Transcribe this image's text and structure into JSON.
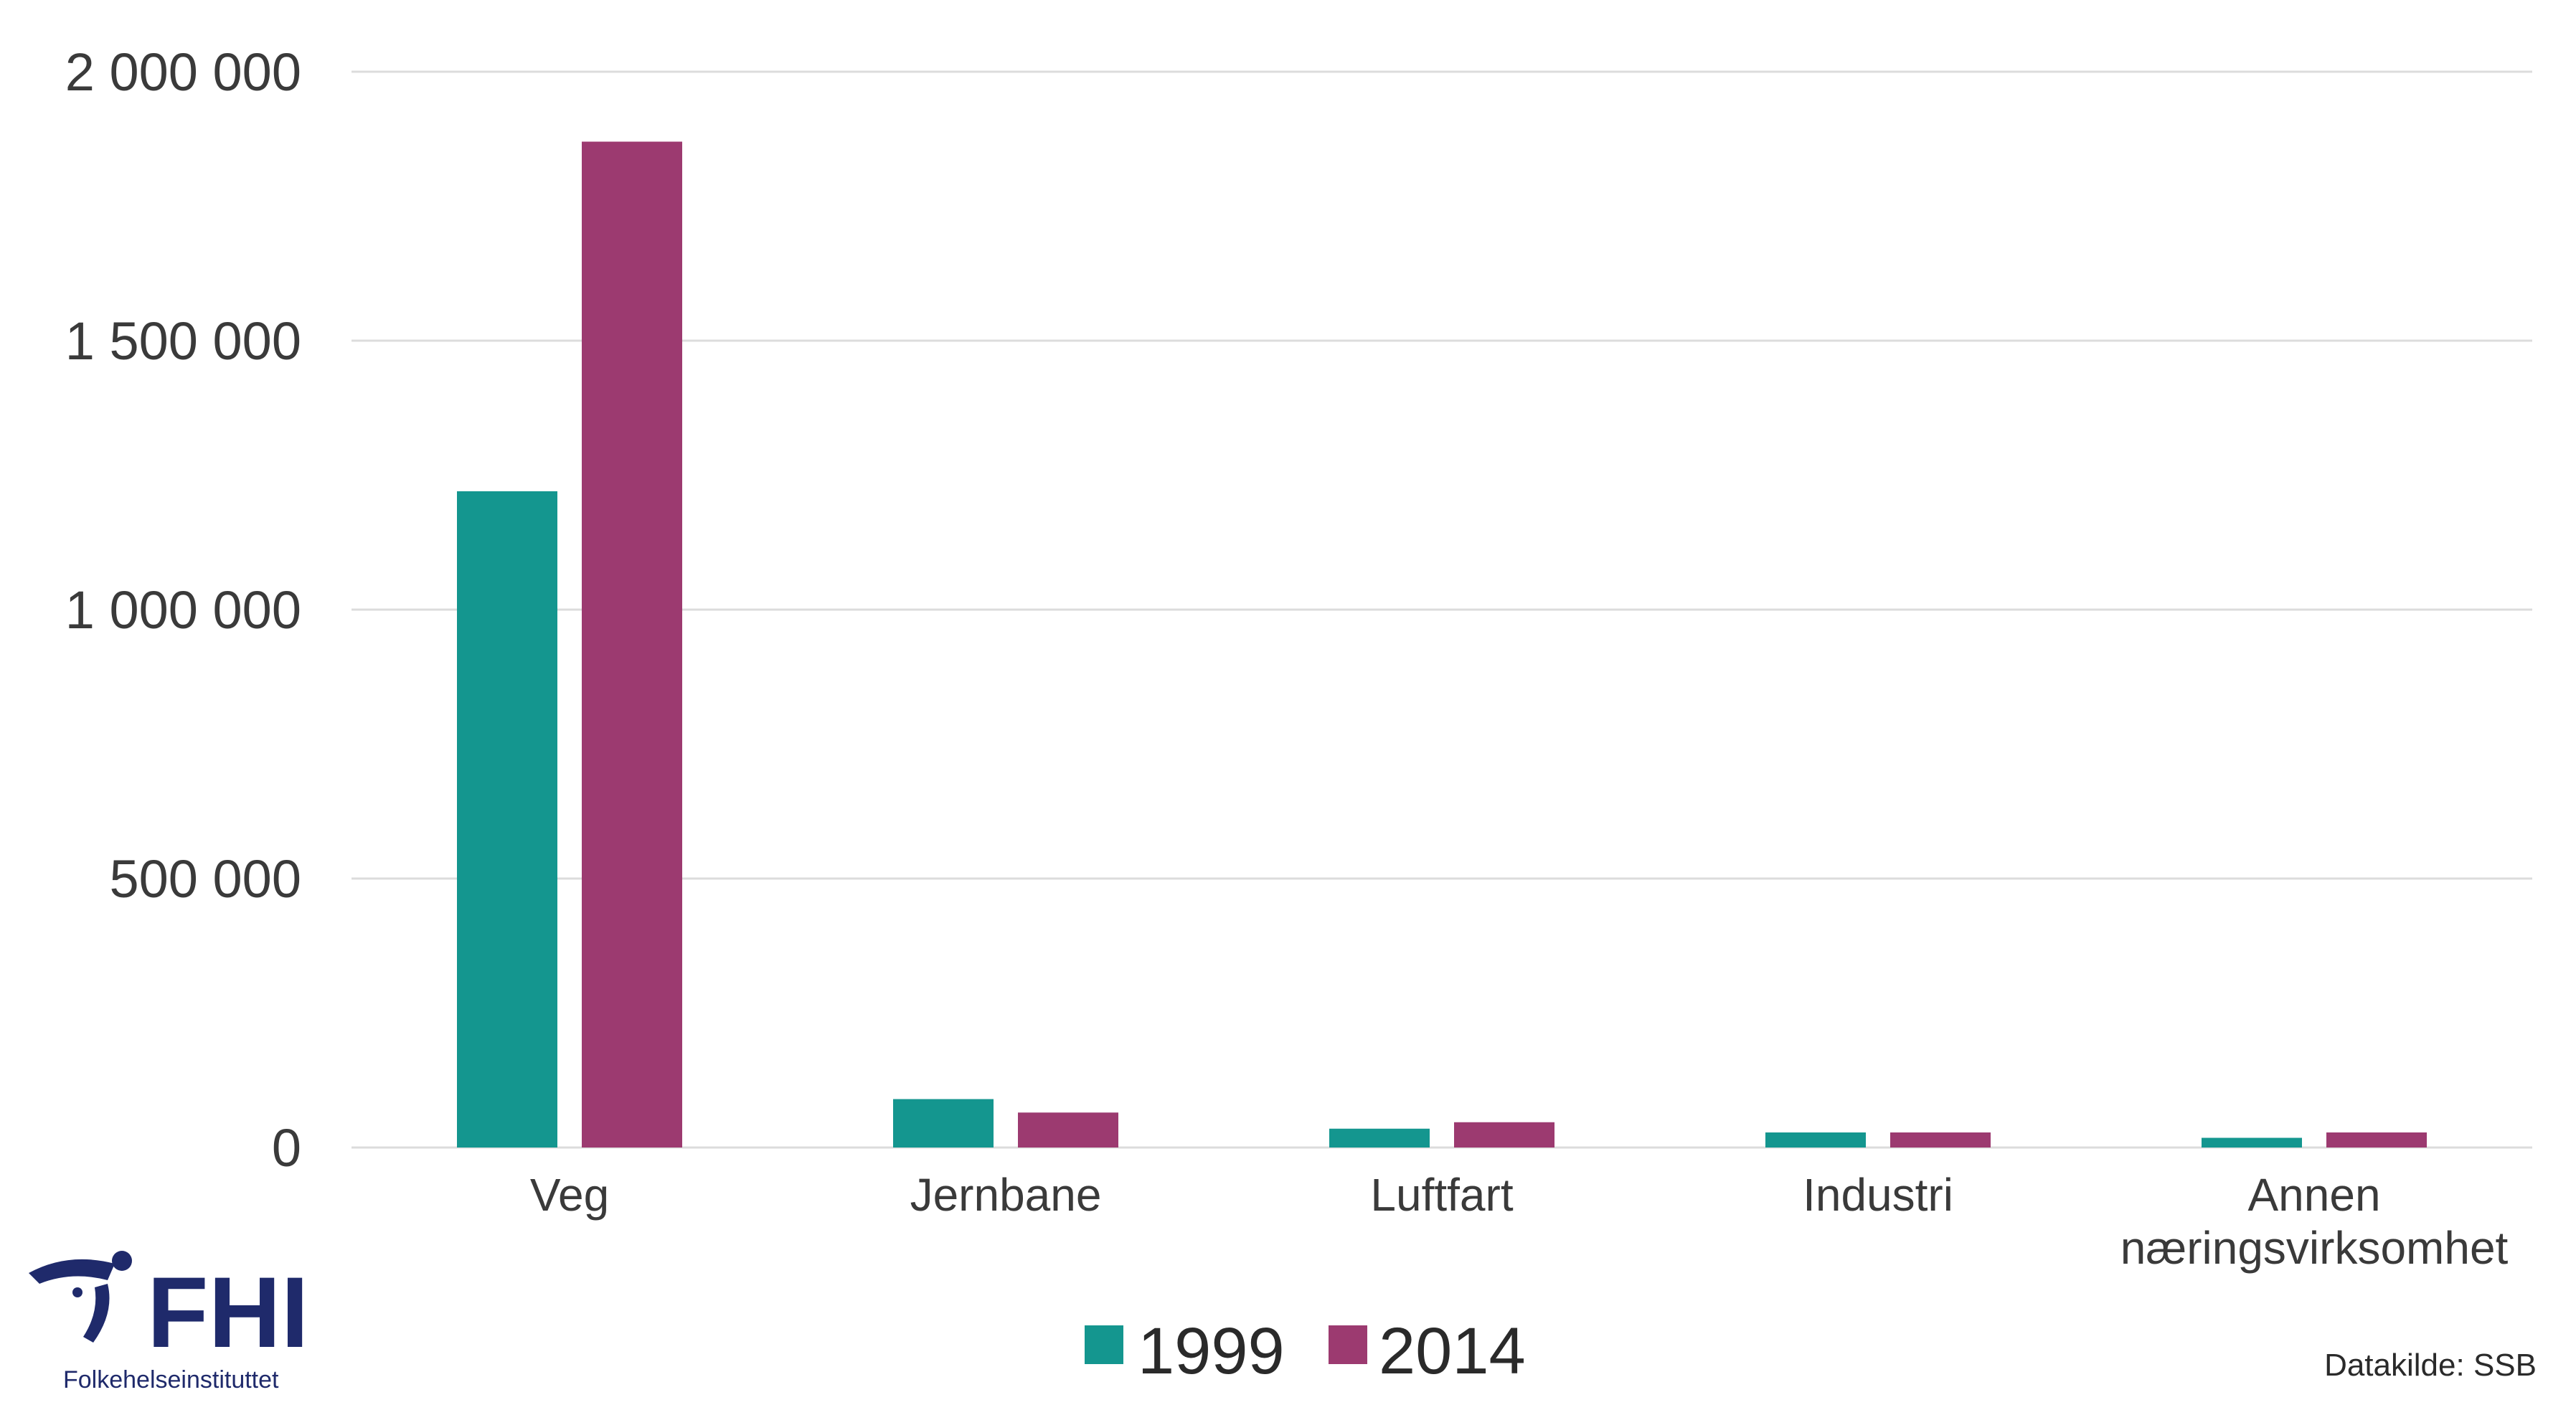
{
  "chart_data": {
    "type": "bar",
    "categories": [
      "Veg",
      [
        "Jernbane"
      ],
      "Luftfart",
      "Industri",
      [
        "Annen",
        "næringsvirksomhet"
      ]
    ],
    "series": [
      {
        "name": "1999",
        "color": "#14968f",
        "values": [
          1220000,
          90000,
          35000,
          28000,
          18000
        ]
      },
      {
        "name": "2014",
        "color": "#9c3a70",
        "values": [
          1870000,
          65000,
          47000,
          28000,
          28000
        ]
      }
    ],
    "ylim": [
      0,
      2000000
    ],
    "yticks": [
      0,
      500000,
      1000000,
      1500000,
      2000000
    ],
    "ytick_labels": [
      "0",
      "500 000",
      "1 000 000",
      "1 500 000",
      "2 000 000"
    ],
    "title": "",
    "xlabel": "",
    "ylabel": "",
    "grid": true,
    "legend": "bottom-center"
  },
  "source": "Datakilde: SSB",
  "logo": {
    "name": "FHI",
    "subtitle": "Folkehelseinstituttet"
  }
}
